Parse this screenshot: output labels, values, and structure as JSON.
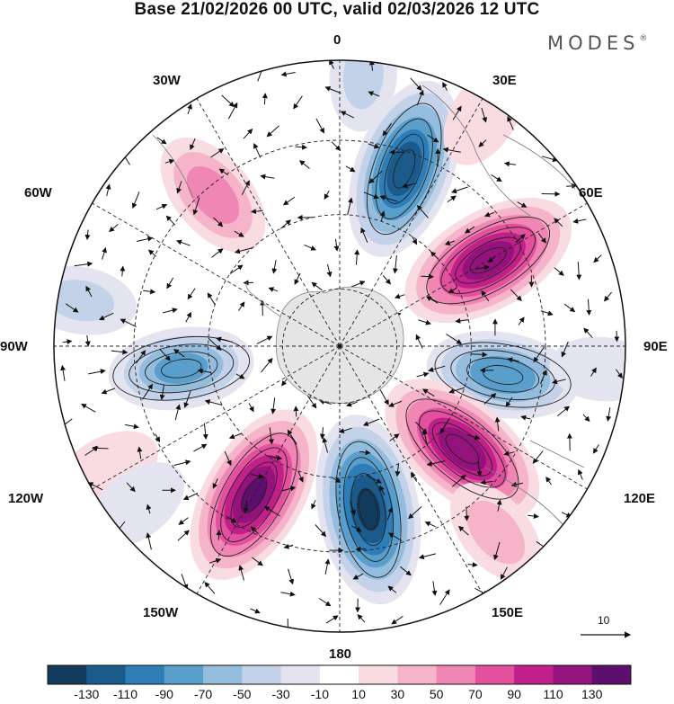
{
  "title": "Base 21/02/2026 00 UTC, valid 02/03/2026 12 UTC",
  "logo": {
    "text": "MODES",
    "mark": "®"
  },
  "projection": "south polar stereographic",
  "longitude_labels": {
    "lon_0": "0",
    "lon_30e": "30E",
    "lon_60e": "60E",
    "lon_90e": "90E",
    "lon_120e": "120E",
    "lon_150e": "150E",
    "lon_180": "180",
    "lon_150w": "150W",
    "lon_120w": "120W",
    "lon_90w": "90W",
    "lon_60w": "60W",
    "lon_30w": "30W"
  },
  "reference_vector": {
    "value": "10"
  },
  "colorbar": {
    "labels": [
      "-130",
      "-110",
      "-90",
      "-70",
      "-50",
      "-30",
      "-10",
      "10",
      "30",
      "50",
      "70",
      "90",
      "110",
      "130"
    ],
    "colors": [
      "#123a5c",
      "#1b5b8c",
      "#2e7db6",
      "#5a9fcb",
      "#94bcdd",
      "#c3d2e8",
      "#e4e4f1",
      "#ffffff",
      "#f9dbe2",
      "#f5b4c9",
      "#ef86b4",
      "#e3509e",
      "#c1208b",
      "#93127b",
      "#5c0f6c"
    ]
  },
  "anomaly_centers": [
    {
      "lon": 20,
      "lat_ring": 0.66,
      "value": -125
    },
    {
      "lon": 60,
      "lat_ring": 0.6,
      "value": 125
    },
    {
      "lon": 100,
      "lat_ring": 0.58,
      "value": -85
    },
    {
      "lon": 130,
      "lat_ring": 0.56,
      "value": 125
    },
    {
      "lon": 170,
      "lat_ring": 0.58,
      "value": -135
    },
    {
      "lon": -150,
      "lat_ring": 0.6,
      "value": 130
    },
    {
      "lon": -98,
      "lat_ring": 0.56,
      "value": -75
    },
    {
      "lon": -40,
      "lat_ring": 0.69,
      "value": 60
    },
    {
      "lon": 5,
      "lat_ring": 0.95,
      "value": -30
    },
    {
      "lon": 32,
      "lat_ring": 0.95,
      "value": 25
    },
    {
      "lon": -80,
      "lat_ring": 0.92,
      "value": -30
    },
    {
      "lon": -118,
      "lat_ring": 0.92,
      "value": 25
    },
    {
      "lon": -128,
      "lat_ring": 0.9,
      "value": -25
    },
    {
      "lon": 95,
      "lat_ring": 0.92,
      "value": -20
    },
    {
      "lon": 140,
      "lat_ring": 0.85,
      "value": 35
    }
  ]
}
